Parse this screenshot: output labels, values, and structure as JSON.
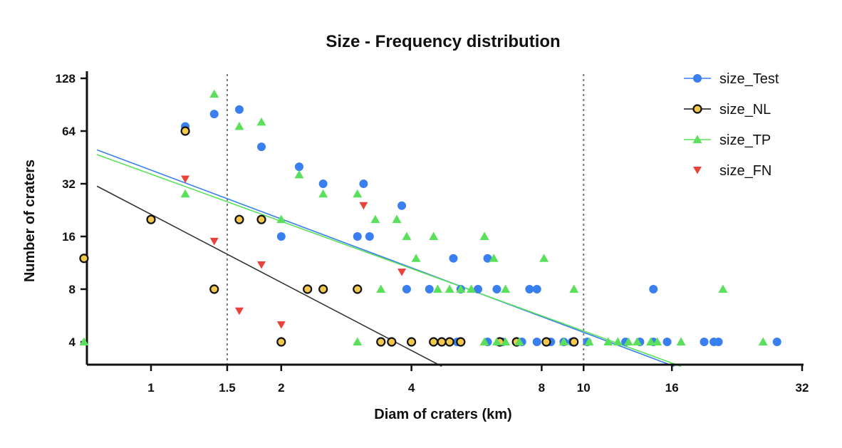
{
  "chart_data": {
    "type": "scatter",
    "title": "Size - Frequency distribution",
    "xlabel": "Diam of craters (km)",
    "ylabel": "Number of craters",
    "x_scale": "log2",
    "y_scale": "log2",
    "xlim": [
      0.6,
      32
    ],
    "ylim": [
      3,
      128
    ],
    "x_ticks": [
      1,
      1.5,
      2,
      4,
      8,
      10,
      16,
      32
    ],
    "x_tick_labels": [
      "1",
      "1.5",
      "2",
      "4",
      "8",
      "10",
      "16",
      "32"
    ],
    "y_ticks": [
      4,
      8,
      16,
      32,
      64,
      128
    ],
    "y_tick_labels": [
      "4",
      "8",
      "16",
      "32",
      "64",
      "128"
    ],
    "reference_lines_x": [
      1.5,
      10
    ],
    "legend_position": "top-right",
    "series": [
      {
        "name": "size_Test",
        "color": "#3a7ff0",
        "marker": "circle",
        "points": [
          [
            1.2,
            68
          ],
          [
            1.4,
            80
          ],
          [
            1.6,
            85
          ],
          [
            1.8,
            52
          ],
          [
            2.0,
            16
          ],
          [
            2.2,
            40
          ],
          [
            2.5,
            32
          ],
          [
            3.0,
            16
          ],
          [
            3.1,
            32
          ],
          [
            3.2,
            16
          ],
          [
            3.8,
            24
          ],
          [
            3.9,
            8
          ],
          [
            4.4,
            8
          ],
          [
            5.0,
            12
          ],
          [
            5.2,
            8
          ],
          [
            5.7,
            8
          ],
          [
            6.0,
            12
          ],
          [
            6.3,
            8
          ],
          [
            7.5,
            8
          ],
          [
            7.8,
            8
          ],
          [
            14.5,
            8
          ],
          [
            5.1,
            4
          ],
          [
            6.0,
            4
          ],
          [
            6.5,
            4
          ],
          [
            7.2,
            4
          ],
          [
            7.8,
            4
          ],
          [
            8.4,
            4
          ],
          [
            9.0,
            4
          ],
          [
            9.4,
            4
          ],
          [
            10.2,
            4
          ],
          [
            12.5,
            4
          ],
          [
            13.5,
            4
          ],
          [
            14.5,
            4
          ],
          [
            15.6,
            4
          ],
          [
            19.0,
            4
          ],
          [
            20.0,
            4
          ],
          [
            20.5,
            4
          ],
          [
            28.0,
            4
          ]
        ]
      },
      {
        "name": "size_NL",
        "color": "#f2c94c",
        "marker": "circle-outline",
        "points": [
          [
            0.7,
            12
          ],
          [
            1.0,
            20
          ],
          [
            1.2,
            64
          ],
          [
            1.4,
            8
          ],
          [
            1.6,
            20
          ],
          [
            1.8,
            20
          ],
          [
            2.0,
            4
          ],
          [
            2.3,
            8
          ],
          [
            2.5,
            8
          ],
          [
            3.0,
            8
          ],
          [
            3.4,
            4
          ],
          [
            3.6,
            4
          ],
          [
            4.0,
            4
          ],
          [
            4.5,
            4
          ],
          [
            4.7,
            4
          ],
          [
            4.9,
            4
          ],
          [
            5.2,
            4
          ],
          [
            6.4,
            4
          ],
          [
            7.0,
            4
          ],
          [
            8.2,
            4
          ],
          [
            9.5,
            4
          ]
        ]
      },
      {
        "name": "size_TP",
        "color": "#5be05b",
        "marker": "triangle-up",
        "points": [
          [
            0.7,
            4
          ],
          [
            1.2,
            28
          ],
          [
            1.4,
            104
          ],
          [
            1.6,
            68
          ],
          [
            1.8,
            72
          ],
          [
            2.0,
            20
          ],
          [
            2.2,
            36
          ],
          [
            2.5,
            28
          ],
          [
            3.0,
            28
          ],
          [
            3.3,
            20
          ],
          [
            3.7,
            20
          ],
          [
            3.4,
            8
          ],
          [
            3.9,
            16
          ],
          [
            4.1,
            12
          ],
          [
            4.5,
            16
          ],
          [
            4.6,
            8
          ],
          [
            4.9,
            8
          ],
          [
            5.2,
            8
          ],
          [
            5.5,
            8
          ],
          [
            5.5,
            8
          ],
          [
            5.9,
            16
          ],
          [
            6.2,
            12
          ],
          [
            6.6,
            8
          ],
          [
            8.1,
            12
          ],
          [
            9.5,
            8
          ],
          [
            21.0,
            8
          ],
          [
            3.0,
            4
          ],
          [
            5.9,
            4
          ],
          [
            6.3,
            4
          ],
          [
            6.6,
            4
          ],
          [
            7.1,
            4
          ],
          [
            9.0,
            4
          ],
          [
            10.3,
            4
          ],
          [
            11.4,
            4
          ],
          [
            12.0,
            4
          ],
          [
            12.7,
            4
          ],
          [
            13.3,
            4
          ],
          [
            14.3,
            4
          ],
          [
            14.8,
            4
          ],
          [
            16.8,
            4
          ],
          [
            26.0,
            4
          ]
        ]
      },
      {
        "name": "size_FN",
        "color": "#e8423a",
        "marker": "triangle-down",
        "points": [
          [
            1.2,
            34
          ],
          [
            1.4,
            15
          ],
          [
            1.6,
            6
          ],
          [
            1.8,
            11
          ],
          [
            2.0,
            5
          ],
          [
            3.1,
            24
          ],
          [
            3.8,
            10
          ]
        ]
      }
    ],
    "trend_lines": [
      {
        "name": "size_Test fit",
        "color": "#3a7ff0",
        "from": [
          0.75,
          50
        ],
        "to": [
          16.2,
          2.9
        ]
      },
      {
        "name": "size_TP fit",
        "color": "#5be05b",
        "from": [
          0.75,
          47
        ],
        "to": [
          16.8,
          2.9
        ]
      },
      {
        "name": "size_NL fit",
        "color": "#333333",
        "from": [
          0.75,
          31
        ],
        "to": [
          4.7,
          2.9
        ]
      }
    ]
  }
}
